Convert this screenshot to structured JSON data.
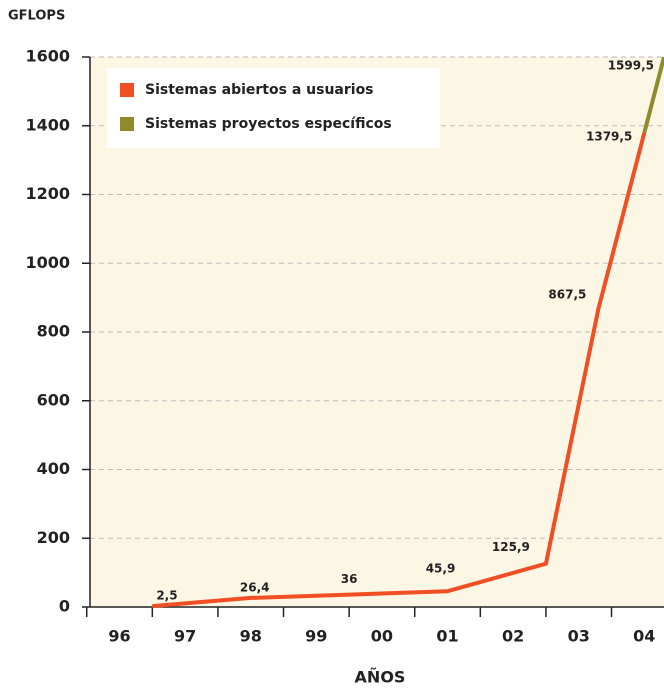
{
  "chart_data": {
    "type": "line",
    "y_axis_label": "GFLOPS",
    "x_axis_label": "AÑOS",
    "xlim": [
      1995.55,
      2004.3
    ],
    "xticks": [
      {
        "value": 1996,
        "label": "96"
      },
      {
        "value": 1997,
        "label": "97"
      },
      {
        "value": 1998,
        "label": "98"
      },
      {
        "value": 1999,
        "label": "99"
      },
      {
        "value": 2000,
        "label": "00"
      },
      {
        "value": 2001,
        "label": "01"
      },
      {
        "value": 2002,
        "label": "02"
      },
      {
        "value": 2003,
        "label": "03"
      },
      {
        "value": 2004,
        "label": "04"
      }
    ],
    "ylim": [
      0,
      1600
    ],
    "yticks": [
      0,
      200,
      400,
      600,
      800,
      1000,
      1200,
      1400,
      1600
    ],
    "grid": true,
    "legend": "upper left",
    "series": [
      {
        "name": "Sistemas abiertos a usuarios",
        "color": "#f04e23",
        "x": [
          1996.5,
          1998,
          1999.5,
          2001,
          2002.5,
          2003.3,
          2004
        ],
        "values": [
          2.5,
          26.4,
          36,
          45.9,
          125.9,
          867.5,
          1379.5
        ],
        "value_labels": [
          "2,5",
          "26,4",
          "36",
          "45,9",
          "125,9",
          "867,5",
          "1379,5"
        ]
      },
      {
        "name": "Sistemas proyectos específicos",
        "color": "#8f8a2c",
        "x": [
          2004,
          2004.3
        ],
        "values": [
          1379.5,
          1599.5
        ],
        "value_labels": [
          null,
          "1599,5"
        ]
      }
    ]
  }
}
